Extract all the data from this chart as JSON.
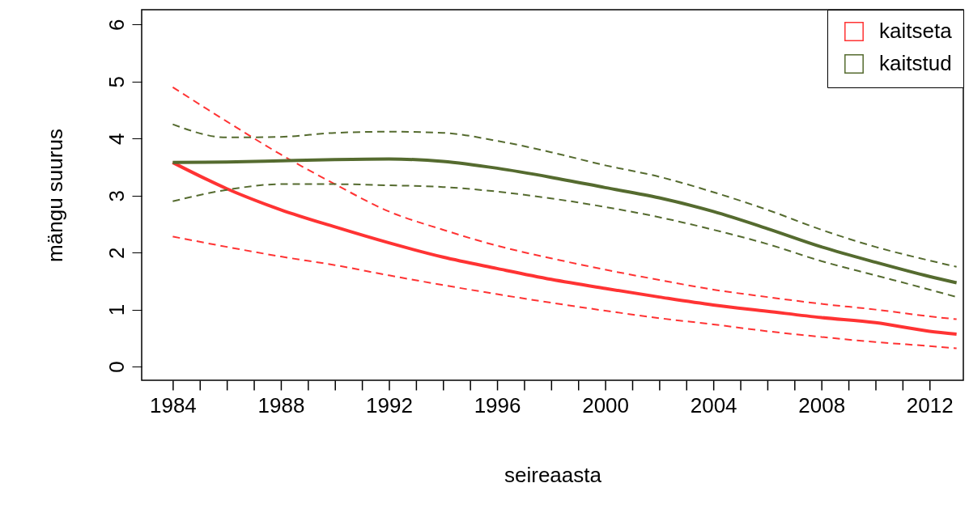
{
  "chart_data": {
    "type": "line",
    "xlabel": "seireaasta",
    "ylabel": "mängu suurus",
    "x": [
      1984,
      1986,
      1988,
      1990,
      1992,
      1994,
      1996,
      1998,
      2000,
      2002,
      2004,
      2006,
      2008,
      2010,
      2012,
      2013
    ],
    "series": [
      {
        "name": "kaitseta",
        "color": "#ff3333",
        "line_style": "solid",
        "values": [
          3.58,
          3.12,
          2.75,
          2.45,
          2.17,
          1.92,
          1.72,
          1.53,
          1.37,
          1.22,
          1.08,
          0.97,
          0.86,
          0.77,
          0.62,
          0.57
        ]
      },
      {
        "color": "#ff3333",
        "line_style": "dashed",
        "values": [
          4.9,
          4.3,
          3.72,
          3.2,
          2.72,
          2.4,
          2.12,
          1.9,
          1.7,
          1.52,
          1.35,
          1.22,
          1.1,
          1.0,
          0.88,
          0.83
        ]
      },
      {
        "color": "#ff3333",
        "line_style": "dashed",
        "values": [
          2.28,
          2.1,
          1.93,
          1.78,
          1.6,
          1.43,
          1.27,
          1.12,
          0.98,
          0.85,
          0.74,
          0.62,
          0.52,
          0.43,
          0.36,
          0.32
        ]
      },
      {
        "name": "kaitstud",
        "color": "#556b2f",
        "line_style": "solid",
        "values": [
          3.58,
          3.59,
          3.61,
          3.63,
          3.64,
          3.6,
          3.48,
          3.32,
          3.14,
          2.96,
          2.72,
          2.42,
          2.1,
          1.83,
          1.58,
          1.47
        ]
      },
      {
        "color": "#556b2f",
        "line_style": "dashed",
        "values": [
          4.25,
          4.02,
          4.03,
          4.1,
          4.12,
          4.1,
          3.96,
          3.76,
          3.53,
          3.33,
          3.06,
          2.75,
          2.4,
          2.1,
          1.86,
          1.75
        ]
      },
      {
        "color": "#556b2f",
        "line_style": "dashed",
        "values": [
          2.9,
          3.1,
          3.2,
          3.2,
          3.18,
          3.15,
          3.07,
          2.95,
          2.8,
          2.62,
          2.4,
          2.15,
          1.85,
          1.6,
          1.35,
          1.22
        ]
      }
    ],
    "xlim": [
      1982.85,
      2013.25
    ],
    "xticks": [
      1984,
      {
        "value": 1985,
        "label": null
      },
      {
        "value": 1986,
        "label": null
      },
      {
        "value": 1987,
        "label": null
      },
      1988,
      {
        "value": 1989,
        "label": null
      },
      {
        "value": 1990,
        "label": null
      },
      {
        "value": 1991,
        "label": null
      },
      1992,
      {
        "value": 1993,
        "label": null
      },
      {
        "value": 1994,
        "label": null
      },
      {
        "value": 1995,
        "label": null
      },
      1996,
      {
        "value": 1997,
        "label": null
      },
      {
        "value": 1998,
        "label": null
      },
      {
        "value": 1999,
        "label": null
      },
      2000,
      {
        "value": 2001,
        "label": null
      },
      {
        "value": 2002,
        "label": null
      },
      {
        "value": 2003,
        "label": null
      },
      2004,
      {
        "value": 2005,
        "label": null
      },
      {
        "value": 2006,
        "label": null
      },
      {
        "value": 2007,
        "label": null
      },
      2008,
      {
        "value": 2009,
        "label": null
      },
      {
        "value": 2010,
        "label": null
      },
      {
        "value": 2011,
        "label": null
      },
      2012
    ],
    "ylim": [
      -0.24,
      6.26
    ],
    "yticks": [
      0,
      1,
      2,
      3,
      4,
      5,
      6
    ],
    "grid": false,
    "legend": "top right"
  }
}
